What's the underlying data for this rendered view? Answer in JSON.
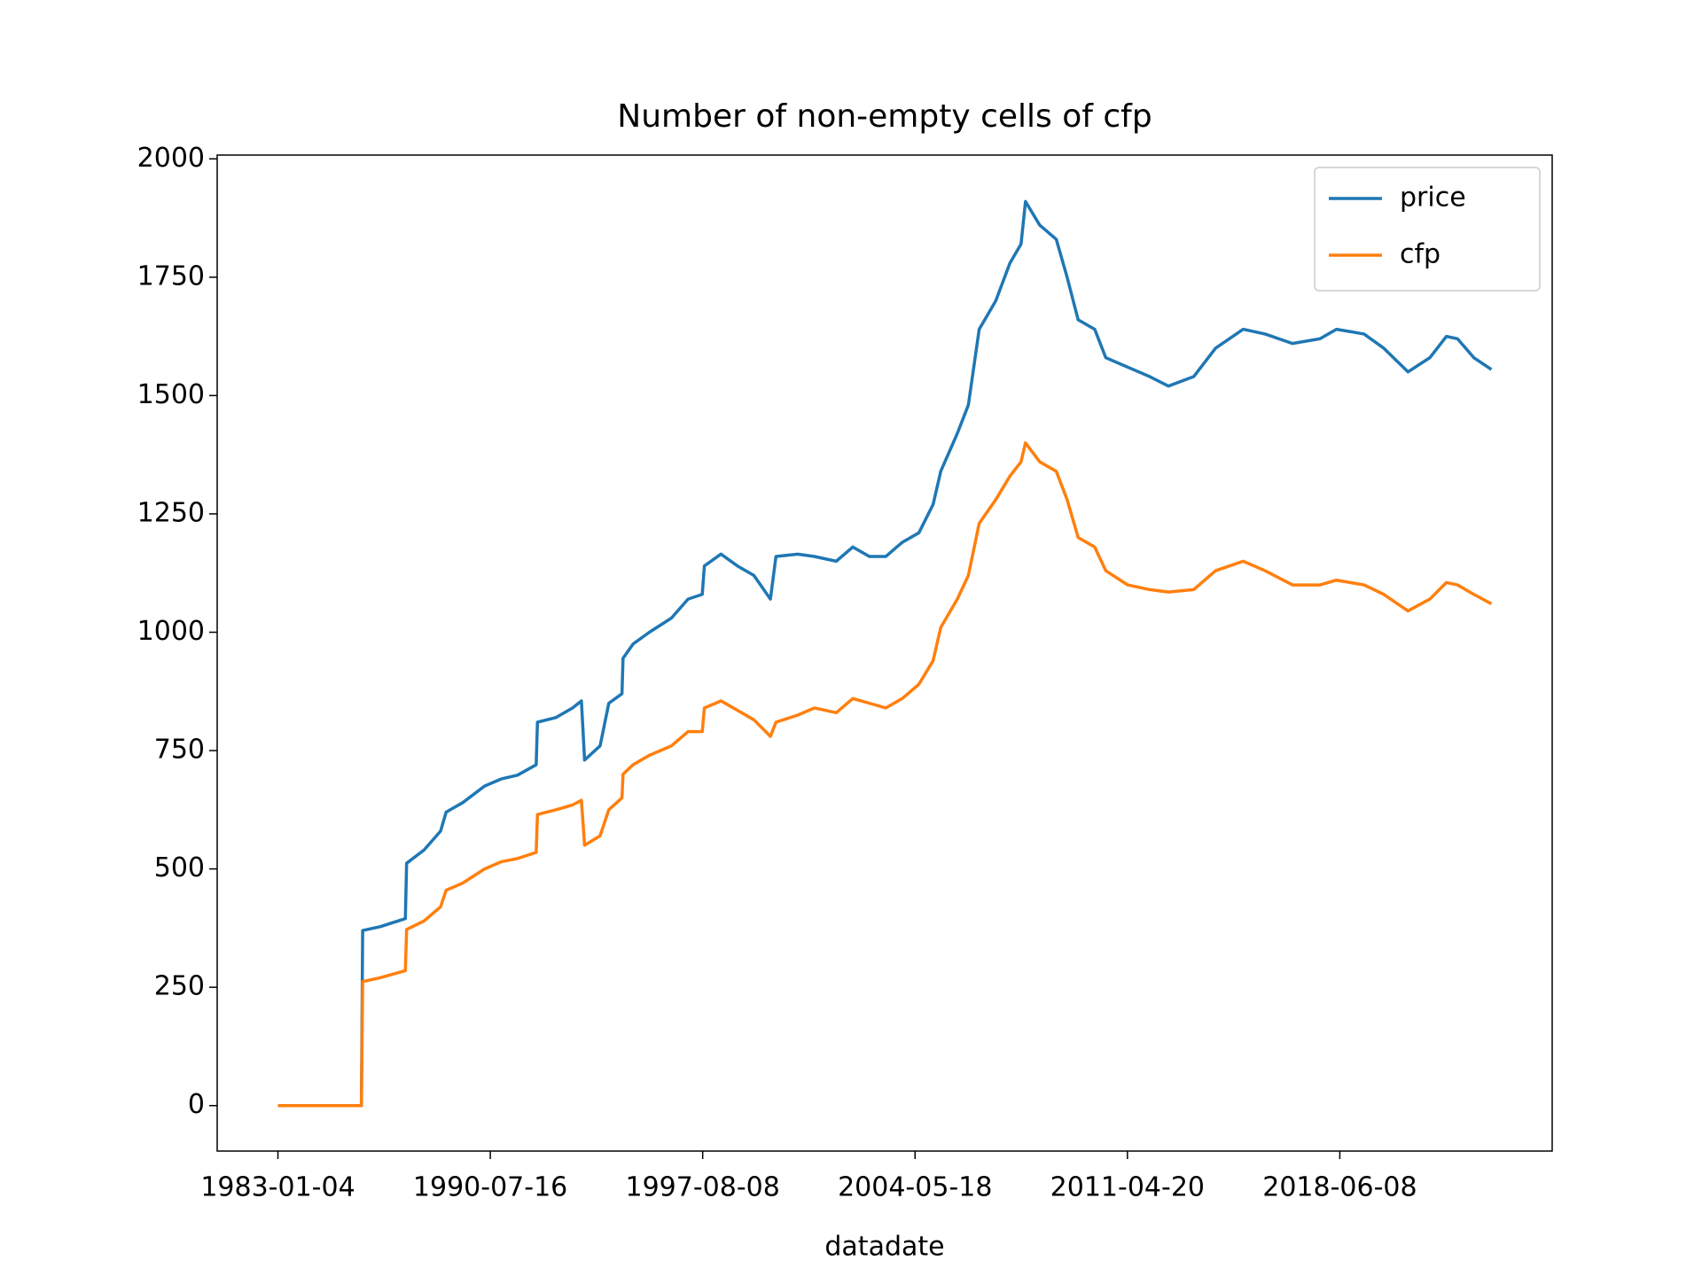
{
  "chart_data": {
    "type": "line",
    "title": "Number of non-empty cells of cfp",
    "x_label": "datadate",
    "x": [
      0,
      0.393,
      0.399,
      0.481,
      0.6,
      0.606,
      0.688,
      0.766,
      0.792,
      0.87,
      0.973,
      1.051,
      1.128,
      1.216,
      1.222,
      1.31,
      1.387,
      1.429,
      1.444,
      1.517,
      1.558,
      1.62,
      1.625,
      1.672,
      1.749,
      1.853,
      1.931,
      1.998,
      2.008,
      2.086,
      2.164,
      2.241,
      2.319,
      2.345,
      2.448,
      2.526,
      2.629,
      2.707,
      2.785,
      2.862,
      2.94,
      3.018,
      3.085,
      3.121,
      3.199,
      3.251,
      3.302,
      3.38,
      3.447,
      3.499,
      3.52,
      3.587,
      3.665,
      3.716,
      3.768,
      3.846,
      3.898,
      4.001,
      4.105,
      4.193,
      4.312,
      4.415,
      4.545,
      4.648,
      4.777,
      4.907,
      4.984,
      5.114,
      5.207,
      5.321,
      5.424,
      5.502,
      5.554,
      5.631,
      5.714
    ],
    "series": [
      {
        "name": "price",
        "color": "#1f77b4",
        "values": [
          0,
          0,
          370,
          378,
          395,
          512,
          540,
          580,
          620,
          640,
          675,
          690,
          698,
          720,
          810,
          820,
          840,
          855,
          730,
          760,
          850,
          870,
          945,
          975,
          1000,
          1030,
          1070,
          1080,
          1140,
          1165,
          1140,
          1120,
          1070,
          1160,
          1165,
          1160,
          1150,
          1180,
          1160,
          1160,
          1190,
          1210,
          1270,
          1340,
          1420,
          1480,
          1640,
          1700,
          1780,
          1820,
          1910,
          1860,
          1830,
          1750,
          1660,
          1640,
          1580,
          1560,
          1540,
          1520,
          1540,
          1600,
          1640,
          1630,
          1610,
          1620,
          1640,
          1630,
          1600,
          1550,
          1580,
          1625,
          1620,
          1580,
          1555
        ]
      },
      {
        "name": "cfp",
        "color": "#ff7f0e",
        "values": [
          0,
          0,
          262,
          270,
          285,
          372,
          390,
          420,
          455,
          470,
          500,
          515,
          522,
          535,
          615,
          625,
          635,
          645,
          550,
          570,
          625,
          650,
          700,
          720,
          740,
          760,
          790,
          790,
          840,
          855,
          835,
          815,
          780,
          810,
          825,
          840,
          830,
          860,
          850,
          840,
          860,
          890,
          940,
          1010,
          1070,
          1120,
          1230,
          1280,
          1330,
          1360,
          1400,
          1360,
          1340,
          1280,
          1200,
          1180,
          1130,
          1100,
          1090,
          1085,
          1090,
          1130,
          1150,
          1130,
          1100,
          1100,
          1110,
          1100,
          1080,
          1045,
          1070,
          1105,
          1100,
          1080,
          1060
        ]
      }
    ],
    "xlim": [
      -0.286,
      6.0
    ],
    "xticks": [
      {
        "value": 0,
        "label": "1983-01-04"
      },
      {
        "value": 1,
        "label": "1990-07-16"
      },
      {
        "value": 2,
        "label": "1997-08-08"
      },
      {
        "value": 3,
        "label": "2004-05-18"
      },
      {
        "value": 4,
        "label": "2011-04-20"
      },
      {
        "value": 5,
        "label": "2018-06-08"
      }
    ],
    "ylim": [
      -96,
      2008
    ],
    "yticks": [
      0,
      250,
      500,
      750,
      1000,
      1250,
      1500,
      1750,
      2000
    ],
    "legend": "upper right"
  }
}
